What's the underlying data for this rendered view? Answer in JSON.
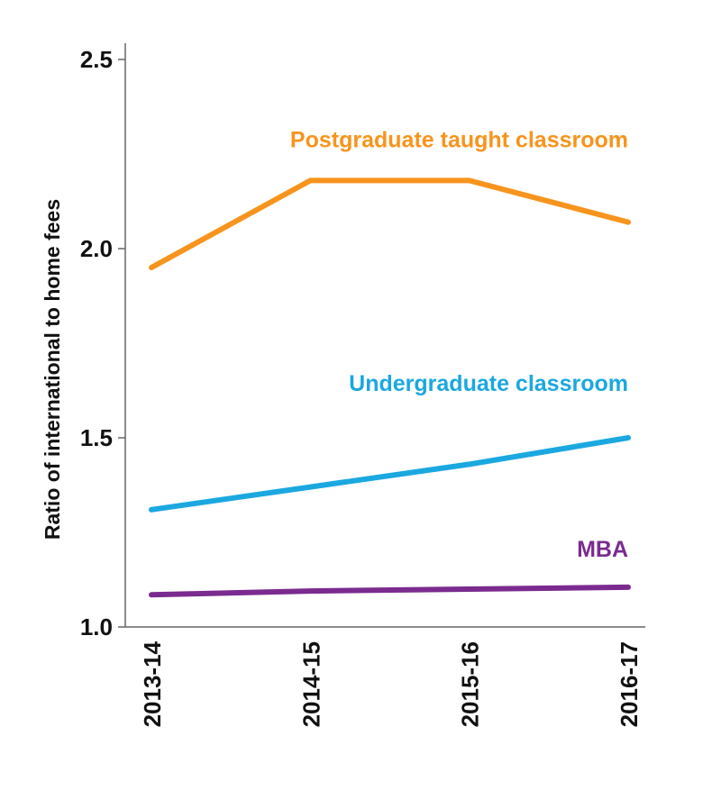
{
  "chart_data": {
    "type": "line",
    "title": "",
    "xlabel": "",
    "ylabel": "Ratio of international to home fees",
    "categories": [
      "2013-14",
      "2014-15",
      "2015-16",
      "2016-17"
    ],
    "ylim": [
      1.0,
      2.5
    ],
    "yticks": [
      "1.0",
      "1.5",
      "2.0",
      "2.5"
    ],
    "grid": false,
    "series": [
      {
        "name": "Postgraduate taught classroom",
        "color": "#f7941d",
        "values": [
          1.95,
          2.18,
          2.18,
          2.07
        ]
      },
      {
        "name": "Undergraduate classroom",
        "color": "#1ba8e0",
        "values": [
          1.31,
          1.37,
          1.43,
          1.5
        ]
      },
      {
        "name": "MBA",
        "color": "#7b2b8f",
        "values": [
          1.085,
          1.095,
          1.1,
          1.105
        ]
      }
    ]
  }
}
